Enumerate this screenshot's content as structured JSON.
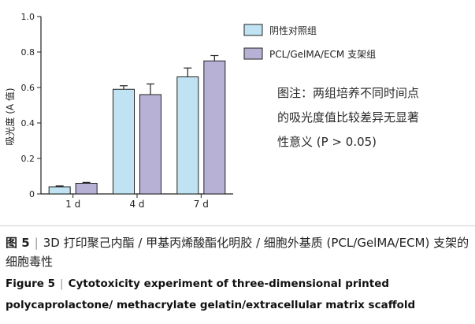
{
  "chart_data": {
    "type": "bar",
    "categories": [
      "1 d",
      "4 d",
      "7 d"
    ],
    "series": [
      {
        "name": "阴性对照组",
        "values": [
          0.04,
          0.59,
          0.66
        ],
        "errors": [
          0.005,
          0.02,
          0.05
        ],
        "color": "#bfe3f3"
      },
      {
        "name": "PCL/GelMA/ECM 支架组",
        "values": [
          0.06,
          0.56,
          0.75
        ],
        "errors": [
          0.005,
          0.06,
          0.03
        ],
        "color": "#b8b1d6"
      }
    ],
    "ylabel": "吸光度 (A 值)",
    "ylim": [
      0,
      1.0
    ],
    "yticks": [
      "0",
      "0.2",
      "0.4",
      "0.6",
      "0.8",
      "1.0"
    ],
    "legend_position": "top-right",
    "grid": false
  },
  "note": {
    "line1": "图注：两组培养不同时间点",
    "line2": "的吸光度值比较差异无显著",
    "line3": "性意义 (P > 0.05)"
  },
  "caption": {
    "cn_number": "图 5",
    "cn_text": "3D 打印聚己内酯 / 甲基丙烯酸酯化明胶 / 细胞外基质 (PCL/GelMA/ECM) 支架的细胞毒性",
    "en_number": "Figure 5",
    "en_text": "Cytotoxicity experiment of three-dimensional printed polycaprolactone/ methacrylate gelatin/extracellular matrix scaffold"
  }
}
